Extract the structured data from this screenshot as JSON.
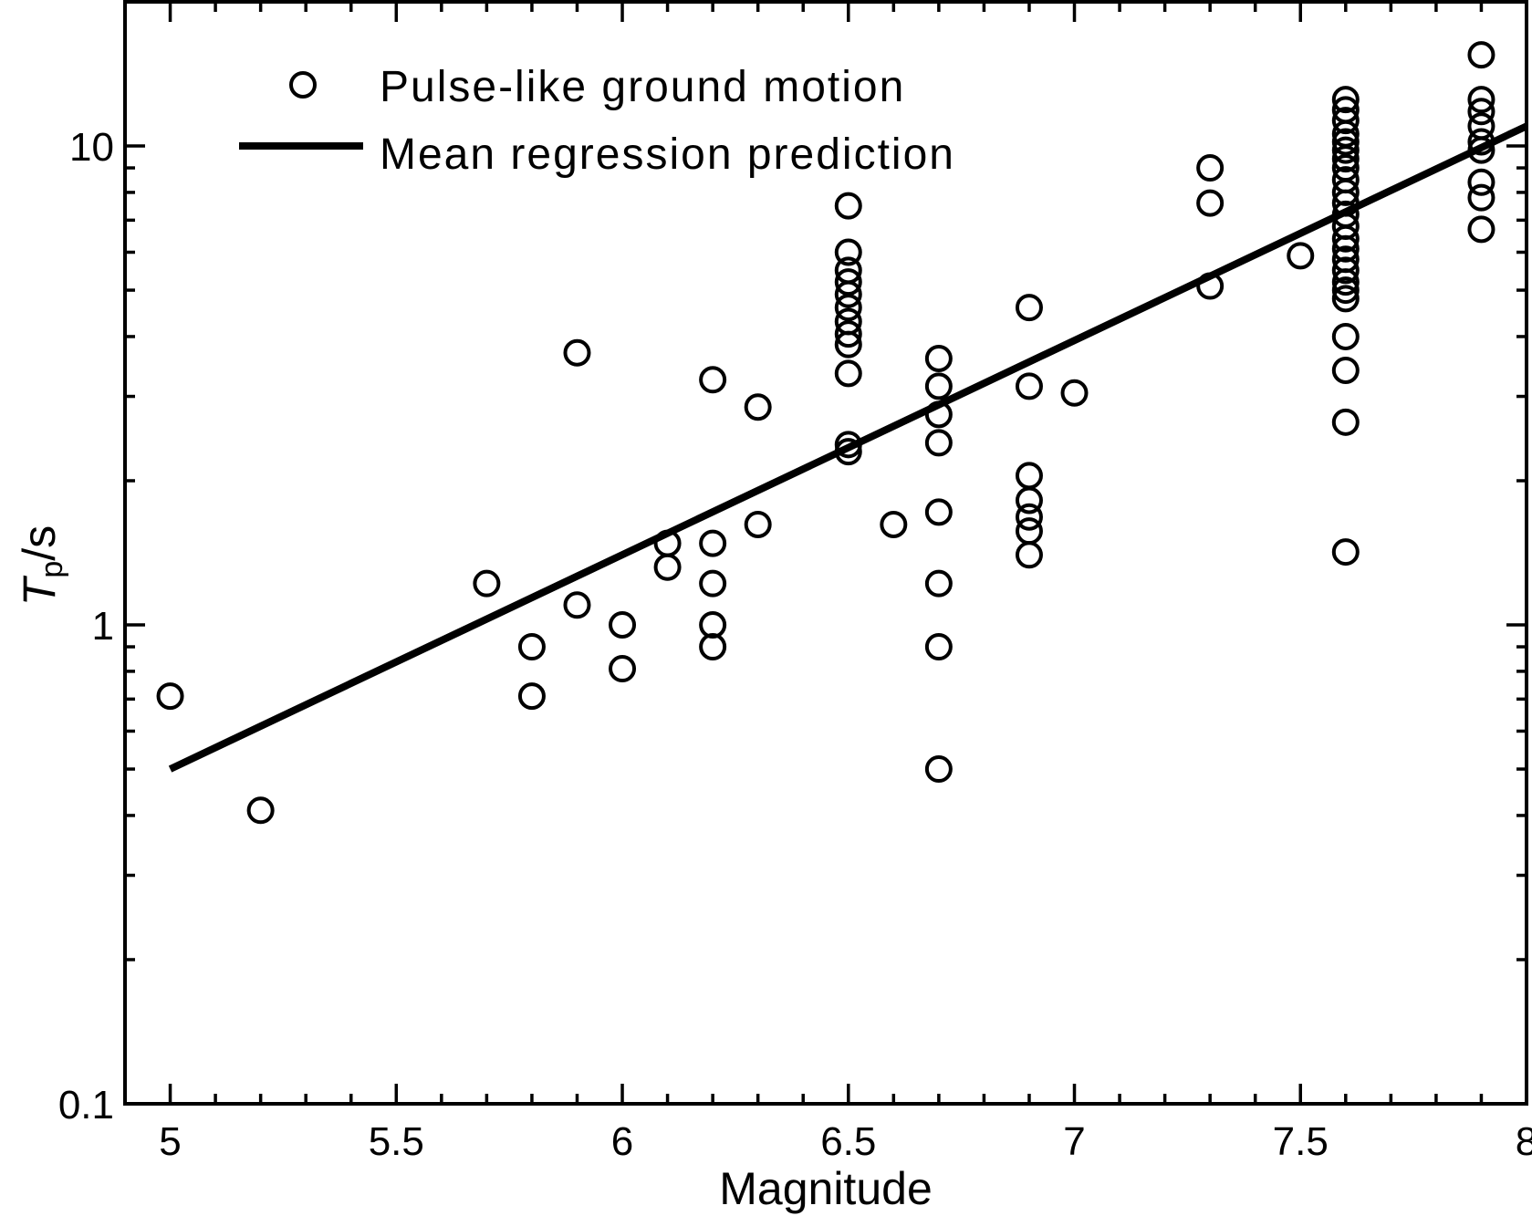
{
  "chart_data": {
    "type": "scatter",
    "xlabel": "Magnitude",
    "ylabel_main": "T",
    "ylabel_sub": "p",
    "ylabel_unit": "/s",
    "xlim": [
      4.9,
      8.0
    ],
    "ylim": [
      0.1,
      20
    ],
    "yscale": "log",
    "grid": false,
    "legend_position": "top-left",
    "x_ticks": [
      "5",
      "5.5",
      "6",
      "6.5",
      "7",
      "7.5",
      "8"
    ],
    "y_ticks": [
      "0.1",
      "1",
      "10"
    ],
    "series": [
      {
        "name": "Pulse-like ground motion",
        "marker": "open-circle",
        "points": [
          [
            5.0,
            0.71
          ],
          [
            5.2,
            0.41
          ],
          [
            5.7,
            1.22
          ],
          [
            5.8,
            0.9
          ],
          [
            5.8,
            0.71
          ],
          [
            5.9,
            3.7
          ],
          [
            5.9,
            1.1
          ],
          [
            6.0,
            1.0
          ],
          [
            6.0,
            0.81
          ],
          [
            6.1,
            1.48
          ],
          [
            6.1,
            1.32
          ],
          [
            6.2,
            3.25
          ],
          [
            6.2,
            1.48
          ],
          [
            6.2,
            1.22
          ],
          [
            6.2,
            1.0
          ],
          [
            6.2,
            0.9
          ],
          [
            6.3,
            2.85
          ],
          [
            6.3,
            1.62
          ],
          [
            6.5,
            7.5
          ],
          [
            6.5,
            6.0
          ],
          [
            6.5,
            5.5
          ],
          [
            6.5,
            5.2
          ],
          [
            6.5,
            4.9
          ],
          [
            6.5,
            4.6
          ],
          [
            6.5,
            4.3
          ],
          [
            6.5,
            4.05
          ],
          [
            6.5,
            3.85
          ],
          [
            6.5,
            3.35
          ],
          [
            6.5,
            2.38
          ],
          [
            6.5,
            2.3
          ],
          [
            6.6,
            1.62
          ],
          [
            6.7,
            3.6
          ],
          [
            6.7,
            3.15
          ],
          [
            6.7,
            2.75
          ],
          [
            6.7,
            2.4
          ],
          [
            6.7,
            1.72
          ],
          [
            6.7,
            1.22
          ],
          [
            6.7,
            0.9
          ],
          [
            6.7,
            0.5
          ],
          [
            6.9,
            4.6
          ],
          [
            6.9,
            3.15
          ],
          [
            6.9,
            2.05
          ],
          [
            6.9,
            1.82
          ],
          [
            6.9,
            1.68
          ],
          [
            6.9,
            1.57
          ],
          [
            6.9,
            1.4
          ],
          [
            7.0,
            3.05
          ],
          [
            7.3,
            9.0
          ],
          [
            7.3,
            7.6
          ],
          [
            7.3,
            5.1
          ],
          [
            7.5,
            5.9
          ],
          [
            7.6,
            12.5
          ],
          [
            7.6,
            11.9
          ],
          [
            7.6,
            11.3
          ],
          [
            7.6,
            10.6
          ],
          [
            7.6,
            10.2
          ],
          [
            7.6,
            9.8
          ],
          [
            7.6,
            9.4
          ],
          [
            7.6,
            9.0
          ],
          [
            7.6,
            8.5
          ],
          [
            7.6,
            8.0
          ],
          [
            7.6,
            7.6
          ],
          [
            7.6,
            7.2
          ],
          [
            7.6,
            6.8
          ],
          [
            7.6,
            6.4
          ],
          [
            7.6,
            6.1
          ],
          [
            7.6,
            5.8
          ],
          [
            7.6,
            5.5
          ],
          [
            7.6,
            5.2
          ],
          [
            7.6,
            5.0
          ],
          [
            7.6,
            4.8
          ],
          [
            7.6,
            4.0
          ],
          [
            7.6,
            3.4
          ],
          [
            7.6,
            2.65
          ],
          [
            7.6,
            1.42
          ],
          [
            7.9,
            15.5
          ],
          [
            7.9,
            12.5
          ],
          [
            7.9,
            11.8
          ],
          [
            7.9,
            11.0
          ],
          [
            7.9,
            10.2
          ],
          [
            7.9,
            9.8
          ],
          [
            7.9,
            8.4
          ],
          [
            7.9,
            7.8
          ],
          [
            7.9,
            6.7
          ]
        ]
      },
      {
        "name": "Mean regression prediction",
        "type": "line",
        "points": [
          [
            5.0,
            0.5
          ],
          [
            8.0,
            11.0
          ]
        ]
      }
    ]
  }
}
